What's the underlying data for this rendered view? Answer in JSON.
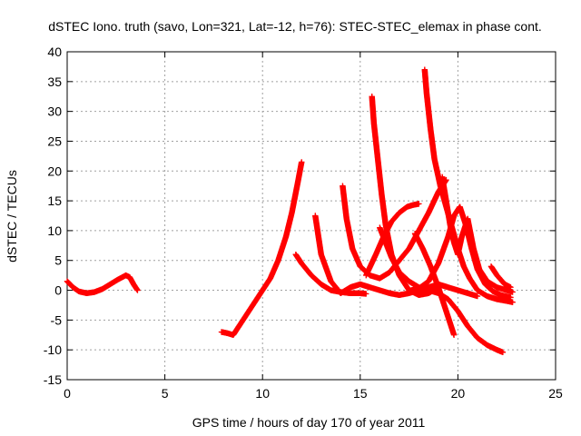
{
  "chart_data": {
    "type": "scatter",
    "title": "dSTEC Iono. truth (savo, Lon=321, Lat=-12, h=76): STEC-STEC_elemax in phase cont.",
    "xlabel": "GPS time / hours of day 170 of year 2011",
    "ylabel": "dSTEC  / TECUs",
    "xlim": [
      0,
      25
    ],
    "ylim": [
      -15,
      40
    ],
    "x_ticks": [
      0,
      5,
      10,
      15,
      20,
      25
    ],
    "y_ticks": [
      -15,
      -10,
      -5,
      0,
      5,
      10,
      15,
      20,
      25,
      30,
      35,
      40
    ],
    "x_tick_labels": [
      "0",
      "5",
      "10",
      "15",
      "20",
      "25"
    ],
    "y_tick_labels": [
      "-15",
      "-10",
      "-5",
      "0",
      "5",
      "10",
      "15",
      "20",
      "25",
      "30",
      "35",
      "40"
    ],
    "grid": true,
    "marker": "plus",
    "color": "#ff0000",
    "series": [
      {
        "x": [
          0.0,
          0.3,
          0.6,
          1.0,
          1.4,
          1.8,
          2.2,
          2.6,
          3.0,
          3.2,
          3.4,
          3.6
        ],
        "y": [
          1.5,
          0.5,
          -0.2,
          -0.5,
          -0.3,
          0.2,
          1.0,
          1.8,
          2.5,
          2.2,
          1.0,
          0.0
        ]
      },
      {
        "x": [
          7.9,
          8.2,
          8.5,
          8.8,
          9.2,
          9.6,
          10.0,
          10.4,
          10.8,
          11.2,
          11.5,
          11.8,
          12.0
        ],
        "y": [
          -7.0,
          -7.2,
          -7.5,
          -6.0,
          -4.0,
          -2.0,
          0.0,
          2.0,
          5.0,
          9.0,
          13.0,
          18.0,
          21.5
        ]
      },
      {
        "x": [
          11.7,
          12.0,
          12.5,
          13.0,
          13.5,
          14.0,
          14.5,
          15.0,
          15.3
        ],
        "y": [
          6.0,
          4.5,
          2.5,
          1.0,
          0.0,
          -0.3,
          -0.5,
          -0.5,
          -0.6
        ]
      },
      {
        "x": [
          12.7,
          13.0,
          13.5,
          14.0,
          14.5,
          15.0,
          15.5,
          16.0,
          16.5,
          17.0,
          17.5,
          18.0,
          18.5,
          19.0,
          19.5,
          20.0,
          20.5,
          21.0
        ],
        "y": [
          12.5,
          6.0,
          1.5,
          -0.5,
          0.5,
          1.0,
          0.5,
          0.0,
          -0.5,
          -0.8,
          -0.5,
          0.0,
          0.5,
          1.0,
          0.5,
          0.0,
          -0.5,
          -1.0
        ]
      },
      {
        "x": [
          14.1,
          14.3,
          14.6,
          15.0,
          15.5,
          16.0,
          16.5,
          17.0,
          17.5,
          18.0,
          18.5,
          19.0,
          19.4
        ],
        "y": [
          17.5,
          12.0,
          7.0,
          4.0,
          2.5,
          2.0,
          3.0,
          5.0,
          7.0,
          10.0,
          13.0,
          16.5,
          18.5
        ]
      },
      {
        "x": [
          15.6,
          15.7,
          15.9,
          16.1,
          16.3,
          16.6,
          17.0,
          17.5,
          18.0,
          18.5,
          19.0
        ],
        "y": [
          32.5,
          28.0,
          22.0,
          16.0,
          11.0,
          6.0,
          2.5,
          0.0,
          -0.8,
          -0.5,
          0.5
        ]
      },
      {
        "x": [
          15.3,
          15.8,
          16.2,
          16.6,
          17.0,
          17.4,
          17.7,
          18.0
        ],
        "y": [
          2.5,
          6.0,
          9.0,
          11.5,
          13.0,
          14.0,
          14.3,
          14.5
        ]
      },
      {
        "x": [
          16.0,
          16.3,
          16.6,
          17.0,
          17.5,
          18.0,
          18.5,
          19.0,
          19.5,
          20.0,
          20.5,
          21.0,
          21.5,
          22.0,
          22.3
        ],
        "y": [
          10.5,
          8.0,
          5.5,
          3.0,
          1.5,
          0.5,
          0.0,
          -0.5,
          -1.5,
          -3.5,
          -6.0,
          -8.0,
          -9.2,
          -10.0,
          -10.4
        ]
      },
      {
        "x": [
          18.3,
          18.4,
          18.6,
          18.8,
          19.1,
          19.4,
          19.7,
          20.0,
          20.3,
          20.6,
          21.0,
          21.5,
          22.0,
          22.5,
          22.8
        ],
        "y": [
          37.0,
          33.0,
          27.0,
          22.0,
          17.5,
          14.0,
          10.5,
          7.0,
          4.0,
          2.0,
          0.0,
          -1.0,
          -1.5,
          -1.8,
          -2.0
        ]
      },
      {
        "x": [
          17.8,
          18.2,
          18.6,
          19.0,
          19.3,
          19.6,
          19.8
        ],
        "y": [
          9.5,
          7.0,
          4.0,
          0.5,
          -2.5,
          -5.5,
          -7.5
        ]
      },
      {
        "x": [
          19.2,
          19.4,
          19.6,
          19.8,
          20.0,
          20.2,
          20.5,
          20.8,
          21.1,
          21.5,
          22.0,
          22.5,
          22.8
        ],
        "y": [
          19.0,
          15.0,
          11.0,
          8.0,
          6.0,
          9.0,
          12.0,
          7.0,
          3.5,
          1.5,
          0.5,
          0.0,
          -0.3
        ]
      },
      {
        "x": [
          17.6,
          18.0,
          18.5,
          19.0,
          19.5,
          19.8,
          20.1,
          20.4,
          20.7,
          21.0,
          21.4,
          21.8,
          22.2,
          22.7
        ],
        "y": [
          0.0,
          0.3,
          1.5,
          4.5,
          9.0,
          12.5,
          14.0,
          11.0,
          7.0,
          3.5,
          1.0,
          -0.2,
          -0.8,
          -1.2
        ]
      },
      {
        "x": [
          21.7,
          22.0,
          22.4,
          22.7
        ],
        "y": [
          4.0,
          2.5,
          1.0,
          0.5
        ]
      }
    ]
  }
}
